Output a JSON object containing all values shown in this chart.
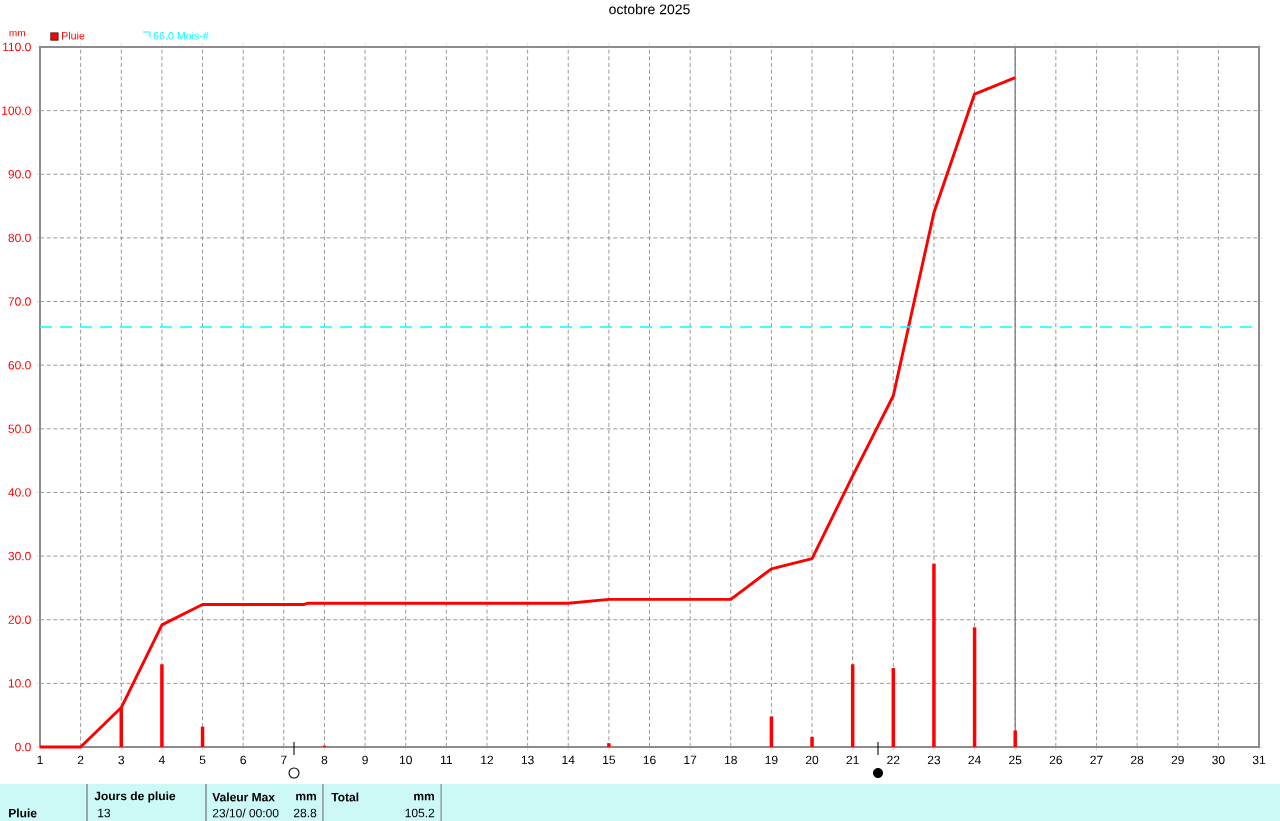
{
  "chart_data": {
    "type": "line",
    "title": "octobre 2025",
    "ylabel": "mm",
    "xlim": [
      1,
      31
    ],
    "xticks": [
      1,
      2,
      3,
      4,
      5,
      6,
      7,
      8,
      9,
      10,
      11,
      12,
      13,
      14,
      15,
      16,
      17,
      18,
      19,
      20,
      21,
      22,
      23,
      24,
      25,
      26,
      27,
      28,
      29,
      30,
      31
    ],
    "ylim": [
      0,
      110
    ],
    "yticks": [
      {
        "value": 0,
        "label": "0.0"
      },
      {
        "value": 10,
        "label": "10.0"
      },
      {
        "value": 20,
        "label": "20.0"
      },
      {
        "value": 30,
        "label": "30.0"
      },
      {
        "value": 40,
        "label": "40.0"
      },
      {
        "value": 50,
        "label": "50.0"
      },
      {
        "value": 60,
        "label": "60.0"
      },
      {
        "value": 70,
        "label": "70.0"
      },
      {
        "value": 80,
        "label": "80.0"
      },
      {
        "value": 90,
        "label": "90.0"
      },
      {
        "value": 100,
        "label": "100.0"
      },
      {
        "value": 110,
        "label": "110.0"
      }
    ],
    "grid": true,
    "legend": "top left",
    "marker": "none",
    "series": [
      {
        "type": "bar",
        "name": "Pluie",
        "color": "#ff0000",
        "x": [
          3,
          4,
          5,
          8,
          15,
          19,
          20,
          21,
          22,
          23,
          24,
          25
        ],
        "values": [
          6.2,
          13.0,
          3.2,
          0.2,
          0.6,
          4.8,
          1.6,
          13.0,
          12.4,
          28.8,
          18.8,
          2.6
        ]
      },
      {
        "color": "#ff0000",
        "x": [
          1,
          2,
          3,
          4,
          5,
          7.5,
          7.6,
          14,
          15,
          18,
          19,
          20,
          21,
          22,
          23,
          24,
          25
        ],
        "values": [
          0,
          0,
          6.2,
          19.2,
          22.4,
          22.4,
          22.6,
          22.6,
          23.2,
          23.2,
          28.0,
          29.6,
          42.6,
          55.2,
          84.0,
          102.6,
          105.2
        ]
      }
    ],
    "ref_lines": [
      {
        "axis": "y",
        "value": 66.0,
        "label": "66.0 Mois-#",
        "color": "#00ffff",
        "line_style": "dashed"
      },
      {
        "axis": "x",
        "value": 25,
        "color": "#808080",
        "line_style": "solid"
      }
    ],
    "annotations": [
      "Pluie",
      "Jours de pluie",
      "13",
      "Valeur Max",
      "mm",
      "23/10/ 00:00",
      "28.8",
      "Total",
      "mm",
      "105.2"
    ]
  }
}
